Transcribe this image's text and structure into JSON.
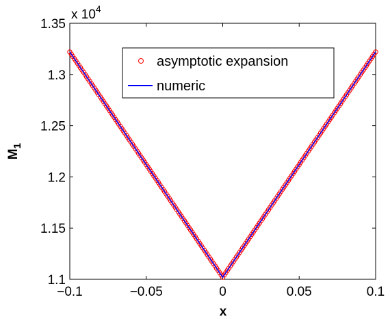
{
  "chart_data": {
    "type": "line",
    "title": "",
    "xlabel": "x",
    "ylabel": "M",
    "ylabel_subscript": "1",
    "xlim": [
      -0.1,
      0.1
    ],
    "ylim": [
      1.1,
      1.35
    ],
    "y_multiplier": "x 10",
    "y_multiplier_exponent": "4",
    "x_ticks": [
      -0.1,
      -0.05,
      0,
      0.05,
      0.1
    ],
    "x_tick_labels": [
      "−0.1",
      "−0.05",
      "0",
      "0.05",
      "0.1"
    ],
    "y_ticks": [
      1.1,
      1.15,
      1.2,
      1.25,
      1.3,
      1.35
    ],
    "y_tick_labels": [
      "1.1",
      "1.15",
      "1.2",
      "1.25",
      "1.3",
      "1.35"
    ],
    "grid": false,
    "legend_position": "top-right",
    "series": [
      {
        "name": "asymptotic expansion",
        "style": "markers",
        "marker": "circle",
        "color": "#ff0000",
        "x": [
          -0.1,
          0.0,
          0.1
        ],
        "y": [
          1.322,
          1.102,
          1.322
        ]
      },
      {
        "name": "numeric",
        "style": "line",
        "color": "#0000ff",
        "x": [
          -0.1,
          0.0,
          0.1
        ],
        "y": [
          1.322,
          1.102,
          1.322
        ]
      }
    ]
  }
}
